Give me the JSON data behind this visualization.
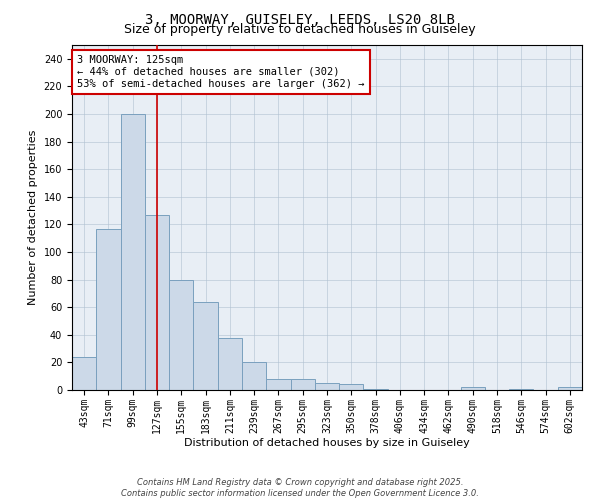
{
  "title1": "3, MOORWAY, GUISELEY, LEEDS, LS20 8LB",
  "title2": "Size of property relative to detached houses in Guiseley",
  "xlabel": "Distribution of detached houses by size in Guiseley",
  "ylabel": "Number of detached properties",
  "bar_labels": [
    "43sqm",
    "71sqm",
    "99sqm",
    "127sqm",
    "155sqm",
    "183sqm",
    "211sqm",
    "239sqm",
    "267sqm",
    "295sqm",
    "323sqm",
    "350sqm",
    "378sqm",
    "406sqm",
    "434sqm",
    "462sqm",
    "490sqm",
    "518sqm",
    "546sqm",
    "574sqm",
    "602sqm"
  ],
  "bar_values": [
    24,
    117,
    200,
    127,
    80,
    64,
    38,
    20,
    8,
    8,
    5,
    4,
    1,
    0,
    0,
    0,
    2,
    0,
    1,
    0,
    2
  ],
  "bar_color": "#ccd9e8",
  "bar_edgecolor": "#7aa0be",
  "bar_width": 1.0,
  "vline_x": 2.98,
  "vline_color": "#cc0000",
  "ylim": [
    0,
    250
  ],
  "yticks": [
    0,
    20,
    40,
    60,
    80,
    100,
    120,
    140,
    160,
    180,
    200,
    220,
    240
  ],
  "annotation_text": "3 MOORWAY: 125sqm\n← 44% of detached houses are smaller (302)\n53% of semi-detached houses are larger (362) →",
  "annotation_box_color": "#ffffff",
  "annotation_box_edgecolor": "#cc0000",
  "plot_background": "#e8eef5",
  "footer_text": "Contains HM Land Registry data © Crown copyright and database right 2025.\nContains public sector information licensed under the Open Government Licence 3.0.",
  "title_fontsize": 10,
  "subtitle_fontsize": 9,
  "axis_label_fontsize": 8,
  "tick_fontsize": 7,
  "annotation_fontsize": 7.5
}
